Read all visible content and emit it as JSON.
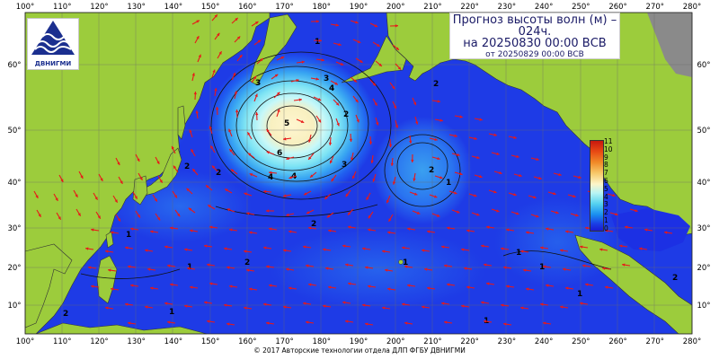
{
  "title": {
    "line1": "Прогноз высоты волн (м) –",
    "line2": "024ч.",
    "line3": "на 20250830 00:00 ВСВ",
    "line4": "от 20250829 00:00 ВСВ"
  },
  "logo": {
    "text": "ДВНИГМИ",
    "icon": "waves-logo-icon"
  },
  "copyright": "© 2017 Авторские технологии отдела ДЛП ФГБУ ДВНИГМИ",
  "x_ticks_top": [
    "100°",
    "110°",
    "120°",
    "130°",
    "140°",
    "150°",
    "160°",
    "170°",
    "180°",
    "190°",
    "200°",
    "210°",
    "220°",
    "230°",
    "240°",
    "250°",
    "260°",
    "270°",
    "280°"
  ],
  "x_ticks_bottom": [
    "100°",
    "110°",
    "120°",
    "130°",
    "140°",
    "150°",
    "160°",
    "170°",
    "180°",
    "190°",
    "200°",
    "210°",
    "220°",
    "230°",
    "240°",
    "250°",
    "260°",
    "270°",
    "280°"
  ],
  "y_ticks": [
    "60°",
    "50°",
    "40°",
    "30°",
    "20°",
    "10°"
  ],
  "legend": {
    "labels": [
      "11",
      "10",
      "9",
      "8",
      "7",
      "6",
      "5",
      "4",
      "3",
      "2",
      "1",
      "0"
    ]
  },
  "contour_labels": [
    "1",
    "3",
    "4",
    "3",
    "5",
    "6",
    "4",
    "4",
    "3",
    "2",
    "2",
    "2",
    "2",
    "2",
    "2",
    "2",
    "1",
    "1",
    "1",
    "1",
    "1",
    "1",
    "1",
    "2",
    "2",
    "1",
    "1"
  ],
  "colors": {
    "land": "#9ccc3c",
    "sea_deep": "#1a1ae0",
    "sea_mid": "#1e6ef0",
    "arrow": "#e81818",
    "peak": "#f8f0c0"
  }
}
